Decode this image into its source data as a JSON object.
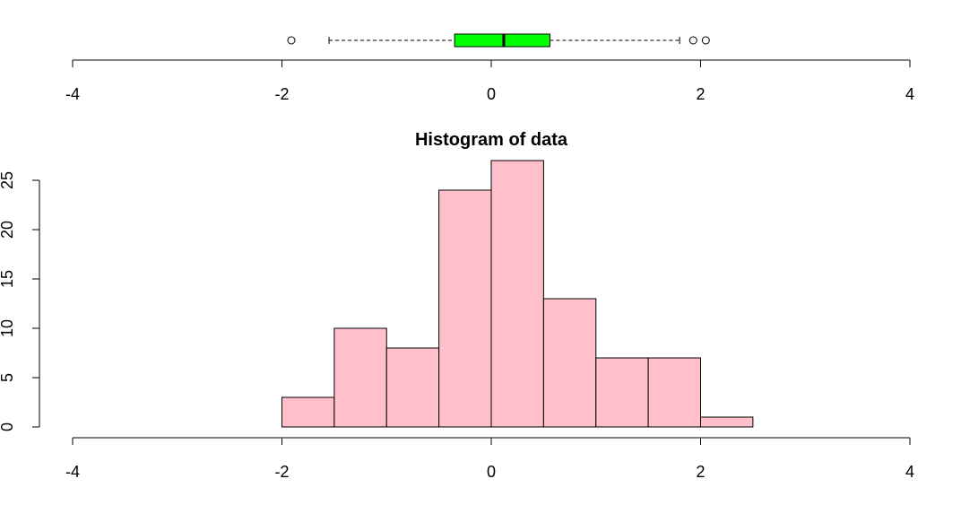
{
  "chart_data": [
    {
      "type": "box",
      "orientation": "horizontal",
      "fill_color": "#00ff00",
      "stats": {
        "lower_whisker": -1.55,
        "q1": -0.35,
        "median": 0.12,
        "q3": 0.56,
        "upper_whisker": 1.8
      },
      "outliers": [
        -1.91,
        1.93,
        2.05
      ],
      "xlim": [
        -4,
        4
      ],
      "x_ticks": [
        "-4",
        "-2",
        "0",
        "2",
        "4"
      ],
      "x_tick_values": [
        -4,
        -2,
        0,
        2,
        4
      ]
    },
    {
      "type": "bar",
      "subtype": "histogram",
      "title": "Histogram of data",
      "fill_color": "#ffc0cb",
      "bins": [
        {
          "from": -2.0,
          "to": -1.5,
          "count": 3
        },
        {
          "from": -1.5,
          "to": -1.0,
          "count": 10
        },
        {
          "from": -1.0,
          "to": -0.5,
          "count": 8
        },
        {
          "from": -0.5,
          "to": 0.0,
          "count": 24
        },
        {
          "from": 0.0,
          "to": 0.5,
          "count": 27
        },
        {
          "from": 0.5,
          "to": 1.0,
          "count": 13
        },
        {
          "from": 1.0,
          "to": 1.5,
          "count": 7
        },
        {
          "from": 1.5,
          "to": 2.0,
          "count": 7
        },
        {
          "from": 2.0,
          "to": 2.5,
          "count": 1
        }
      ],
      "xlim": [
        -4,
        4
      ],
      "ylim": [
        0,
        25
      ],
      "x_ticks": [
        "-4",
        "-2",
        "0",
        "2",
        "4"
      ],
      "x_tick_values": [
        -4,
        -2,
        0,
        2,
        4
      ],
      "y_ticks": [
        "0",
        "5",
        "10",
        "15",
        "20",
        "25"
      ],
      "y_tick_values": [
        0,
        5,
        10,
        15,
        20,
        25
      ]
    }
  ]
}
